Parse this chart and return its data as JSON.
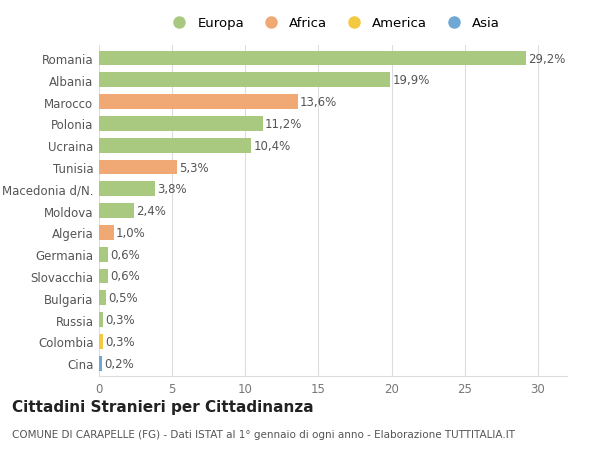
{
  "categories": [
    "Romania",
    "Albania",
    "Marocco",
    "Polonia",
    "Ucraina",
    "Tunisia",
    "Macedonia d/N.",
    "Moldova",
    "Algeria",
    "Germania",
    "Slovacchia",
    "Bulgaria",
    "Russia",
    "Colombia",
    "Cina"
  ],
  "values": [
    29.2,
    19.9,
    13.6,
    11.2,
    10.4,
    5.3,
    3.8,
    2.4,
    1.0,
    0.6,
    0.6,
    0.5,
    0.3,
    0.3,
    0.2
  ],
  "labels": [
    "29,2%",
    "19,9%",
    "13,6%",
    "11,2%",
    "10,4%",
    "5,3%",
    "3,8%",
    "2,4%",
    "1,0%",
    "0,6%",
    "0,6%",
    "0,5%",
    "0,3%",
    "0,3%",
    "0,2%"
  ],
  "colors": [
    "#a8c97f",
    "#a8c97f",
    "#f0a875",
    "#a8c97f",
    "#a8c97f",
    "#f0a875",
    "#a8c97f",
    "#a8c97f",
    "#f0a875",
    "#a8c97f",
    "#a8c97f",
    "#a8c97f",
    "#a8c97f",
    "#f5c842",
    "#6fa8d4"
  ],
  "legend_labels": [
    "Europa",
    "Africa",
    "America",
    "Asia"
  ],
  "legend_colors": [
    "#a8c97f",
    "#f0a875",
    "#f5c842",
    "#6fa8d4"
  ],
  "title": "Cittadini Stranieri per Cittadinanza",
  "subtitle": "COMUNE DI CARAPELLE (FG) - Dati ISTAT al 1° gennaio di ogni anno - Elaborazione TUTTITALIA.IT",
  "xlim": [
    0,
    32
  ],
  "xticks": [
    0,
    5,
    10,
    15,
    20,
    25,
    30
  ],
  "background_color": "#ffffff",
  "grid_color": "#dddddd",
  "bar_height": 0.68,
  "title_fontsize": 11,
  "subtitle_fontsize": 7.5,
  "tick_fontsize": 8.5,
  "label_fontsize": 8.5,
  "legend_fontsize": 9.5
}
